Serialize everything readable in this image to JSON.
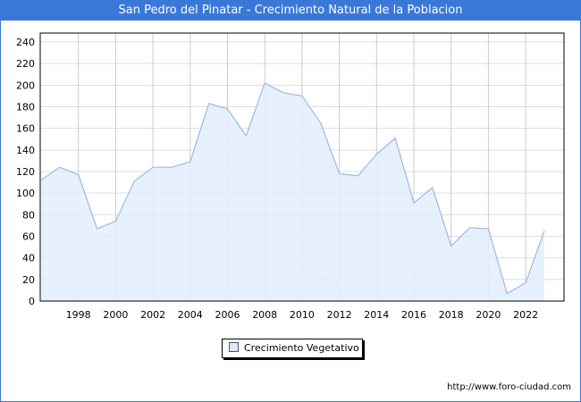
{
  "chart_data": {
    "type": "area",
    "title": "San Pedro del Pinatar - Crecimiento Natural de la Poblacion",
    "x": [
      1996,
      1997,
      1998,
      1999,
      2000,
      2001,
      2002,
      2003,
      2004,
      2005,
      2006,
      2007,
      2008,
      2009,
      2010,
      2011,
      2012,
      2013,
      2014,
      2015,
      2016,
      2017,
      2018,
      2019,
      2020,
      2021,
      2022,
      2023
    ],
    "series": [
      {
        "name": "Crecimiento Vegetativo",
        "values": [
          112,
          124,
          117,
          67,
          74,
          111,
          124,
          124,
          129,
          183,
          178,
          153,
          202,
          193,
          190,
          165,
          118,
          116,
          136,
          151,
          91,
          105,
          51,
          68,
          67,
          7,
          17,
          65
        ]
      }
    ],
    "xticks": [
      1998,
      2000,
      2002,
      2004,
      2006,
      2008,
      2010,
      2012,
      2014,
      2016,
      2018,
      2020,
      2022
    ],
    "yticks": [
      0,
      20,
      40,
      60,
      80,
      100,
      120,
      140,
      160,
      180,
      200,
      220,
      240
    ],
    "ylim": [
      0,
      250
    ],
    "xlim": [
      1996,
      2024
    ],
    "grid": true,
    "legend": "bottom-center",
    "colors": {
      "line": "#9ab8ea",
      "fill": "#e3effd",
      "header": "#3a78d8"
    }
  },
  "watermark": "FORO-CIUDAD.COM",
  "url": "http://www.foro-ciudad.com"
}
